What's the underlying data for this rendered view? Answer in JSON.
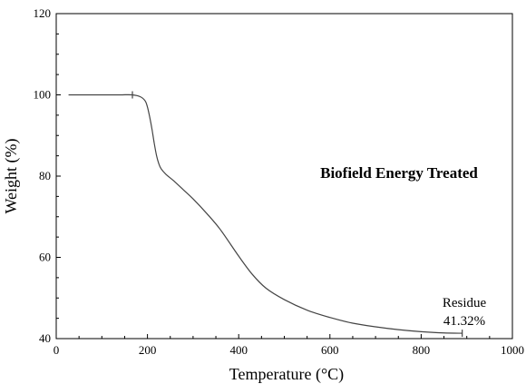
{
  "chart_data": {
    "type": "line",
    "title": "",
    "xlabel": "Temperature (°C)",
    "ylabel": "Weight (%)",
    "xlim": [
      0,
      1000
    ],
    "ylim": [
      40,
      120
    ],
    "x_ticks": [
      0,
      200,
      400,
      600,
      800,
      1000
    ],
    "y_ticks": [
      40,
      60,
      80,
      100,
      120
    ],
    "x_tick_labels": [
      "0",
      "200",
      "400",
      "600",
      "800",
      "1000"
    ],
    "y_tick_labels": [
      "40",
      "60",
      "80",
      "100",
      "120"
    ],
    "grid": false,
    "line_color": "#444444",
    "series": [
      {
        "x": [
          27,
          60,
          100,
          140,
          167,
          185,
          195,
          200,
          205,
          210,
          215,
          220,
          225,
          230,
          240,
          260,
          280,
          300,
          330,
          360,
          400,
          430,
          460,
          500,
          550,
          600,
          650,
          700,
          750,
          800,
          850,
          890
        ],
        "y": [
          100,
          100,
          100,
          100,
          100,
          99.5,
          98.5,
          97.0,
          94.5,
          91.5,
          88.0,
          85.0,
          83.0,
          81.8,
          80.5,
          78.6,
          76.5,
          74.4,
          70.8,
          66.8,
          60.3,
          55.8,
          52.4,
          49.6,
          47.0,
          45.2,
          43.8,
          42.9,
          42.2,
          41.7,
          41.4,
          41.32
        ]
      }
    ],
    "markers": [
      {
        "x": 167,
        "y": 100
      },
      {
        "x": 890,
        "y": 41.32
      }
    ],
    "annotations": {
      "treatment_label": "Biofield Energy Treated",
      "residue_label": "Residue",
      "residue_value": "41.32%"
    }
  }
}
